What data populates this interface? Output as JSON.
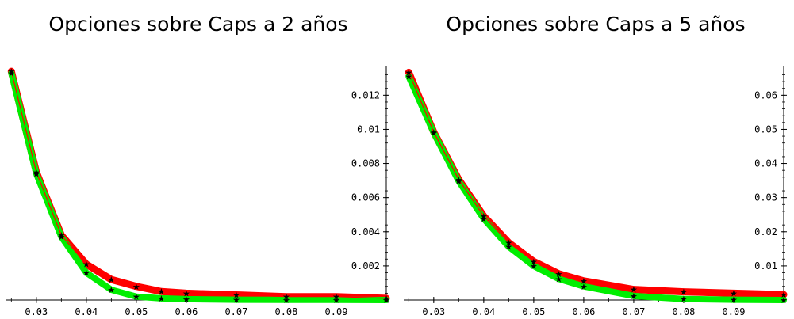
{
  "chart_data": [
    {
      "type": "line",
      "title": "Opciones sobre Caps a 2 años",
      "xlabel": "",
      "ylabel": "",
      "xlim": [
        0.024,
        0.1
      ],
      "ylim": [
        0,
        0.0135
      ],
      "x_ticks": [
        "0.03",
        "0.04",
        "0.05",
        "0.06",
        "0.07",
        "0.08",
        "0.09"
      ],
      "x_tick_values": [
        0.03,
        0.04,
        0.05,
        0.06,
        0.07,
        0.08,
        0.09
      ],
      "y_ticks": [
        "0.002",
        "0.004",
        "0.006",
        "0.008",
        "0.01",
        "0.012"
      ],
      "y_tick_values": [
        0.002,
        0.004,
        0.006,
        0.008,
        0.01,
        0.012
      ],
      "axis_position": "right",
      "grid": false,
      "colors": {
        "series_a": "#ff0000",
        "series_b": "#00ee00",
        "markers": "#000000"
      },
      "series": [
        {
          "x": [
            0.025,
            0.03,
            0.035,
            0.04,
            0.045,
            0.05,
            0.055,
            0.06,
            0.07,
            0.08,
            0.09,
            0.1
          ],
          "values": [
            0.0134,
            0.0075,
            0.0038,
            0.0021,
            0.0012,
            0.0008,
            0.0005,
            0.0004,
            0.0003,
            0.0002,
            0.0002,
            0.0001
          ]
        },
        {
          "x": [
            0.025,
            0.03,
            0.035,
            0.04,
            0.045,
            0.05,
            0.055,
            0.06,
            0.07,
            0.08,
            0.09,
            0.1
          ],
          "values": [
            0.0133,
            0.0074,
            0.0037,
            0.0016,
            0.0006,
            0.0002,
            0.0001,
            5e-05,
            2e-05,
            1e-05,
            1e-05,
            0.0
          ]
        }
      ]
    },
    {
      "type": "line",
      "title": "Opciones sobre Caps a 5 años",
      "xlabel": "",
      "ylabel": "",
      "xlim": [
        0.024,
        0.1
      ],
      "ylim": [
        0,
        0.0675
      ],
      "x_ticks": [
        "0.03",
        "0.04",
        "0.05",
        "0.06",
        "0.07",
        "0.08",
        "0.09"
      ],
      "x_tick_values": [
        0.03,
        0.04,
        0.05,
        0.06,
        0.07,
        0.08,
        0.09
      ],
      "y_ticks": [
        "0.01",
        "0.02",
        "0.03",
        "0.04",
        "0.05",
        "0.06"
      ],
      "y_tick_values": [
        0.01,
        0.02,
        0.03,
        0.04,
        0.05,
        0.06
      ],
      "axis_position": "right",
      "grid": false,
      "colors": {
        "series_a": "#ff0000",
        "series_b": "#00ee00",
        "markers": "#000000"
      },
      "series": [
        {
          "x": [
            0.025,
            0.03,
            0.035,
            0.04,
            0.045,
            0.05,
            0.055,
            0.06,
            0.07,
            0.08,
            0.09,
            0.1
          ],
          "values": [
            0.0667,
            0.0492,
            0.0353,
            0.0246,
            0.0168,
            0.0113,
            0.0077,
            0.0056,
            0.0031,
            0.0024,
            0.002,
            0.0016
          ]
        },
        {
          "x": [
            0.025,
            0.03,
            0.035,
            0.04,
            0.045,
            0.05,
            0.055,
            0.06,
            0.07,
            0.08,
            0.09,
            0.1
          ],
          "values": [
            0.0655,
            0.049,
            0.0348,
            0.0238,
            0.0156,
            0.01,
            0.0062,
            0.004,
            0.0012,
            0.0003,
            0.0001,
            0.0
          ]
        }
      ]
    }
  ]
}
